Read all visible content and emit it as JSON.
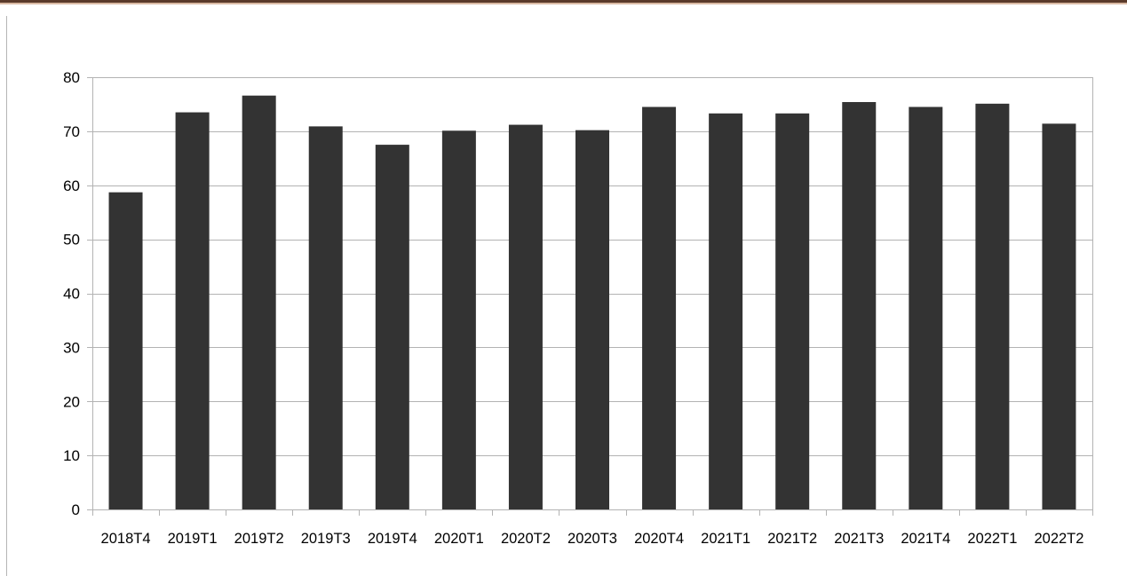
{
  "colors": {
    "bar": "#333333",
    "grid": "#b3b3b3",
    "axis": "#b3b3b3",
    "header_rule_dark": "#5a3a2a",
    "header_rule_light": "#d9b9a3"
  },
  "chart_data": {
    "type": "bar",
    "title": "",
    "xlabel": "",
    "ylabel": "",
    "categories": [
      "2018T4",
      "2019T1",
      "2019T2",
      "2019T3",
      "2019T4",
      "2020T1",
      "2020T2",
      "2020T3",
      "2020T4",
      "2021T1",
      "2021T2",
      "2021T3",
      "2021T4",
      "2022T1",
      "2022T2"
    ],
    "values": [
      58.7,
      73.5,
      76.6,
      70.9,
      67.5,
      70.1,
      71.2,
      70.2,
      74.5,
      73.3,
      73.3,
      75.4,
      74.5,
      75.1,
      71.4
    ],
    "ylim": [
      0,
      80
    ],
    "yticks": [
      0,
      10,
      20,
      30,
      40,
      50,
      60,
      70,
      80
    ],
    "grid": true,
    "legend": "none"
  }
}
